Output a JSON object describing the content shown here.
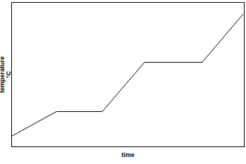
{
  "chart_data": {
    "type": "line",
    "x_label": "time",
    "y_label": "temperature\n°C",
    "x": [
      0,
      19.3,
      39,
      57.1,
      81.9,
      99.4
    ],
    "values": [
      7.3,
      24.4,
      24.4,
      58.5,
      58.5,
      91.7
    ],
    "color": "#000000",
    "xlim": [
      0,
      100
    ],
    "ylim": [
      0,
      100
    ],
    "tick_labels": false,
    "grid": false
  }
}
